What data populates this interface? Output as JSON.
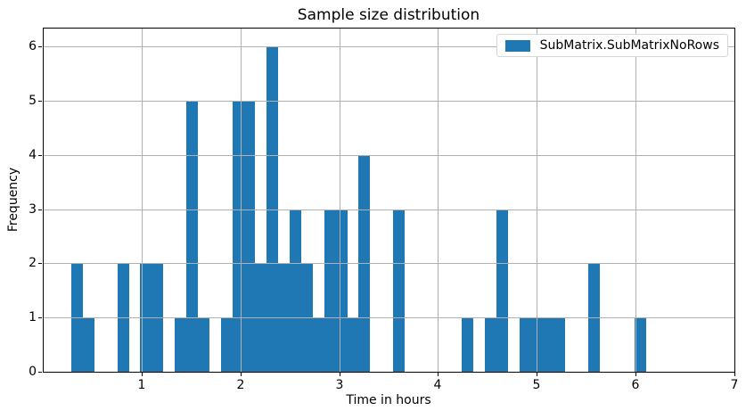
{
  "chart_data": {
    "type": "histogram",
    "title": "Sample size distribution",
    "xlabel": "Time in hours",
    "ylabel": "Frequency",
    "series_name": "SubMatrix.SubMatrixNoRows",
    "legend_position": "upper right",
    "grid": true,
    "xlim": [
      0,
      7
    ],
    "ylim": [
      0,
      6.35
    ],
    "xticks": [
      1,
      2,
      3,
      4,
      5,
      6,
      7
    ],
    "yticks": [
      0,
      1,
      2,
      3,
      4,
      5,
      6
    ],
    "bin_start": 0.29,
    "bin_width": 0.11628,
    "data_range": [
      0.29,
      6.1
    ],
    "counts": [
      2,
      1,
      0,
      0,
      2,
      0,
      2,
      2,
      0,
      1,
      5,
      1,
      0,
      1,
      5,
      5,
      2,
      6,
      2,
      3,
      2,
      1,
      3,
      3,
      1,
      4,
      0,
      0,
      3,
      0,
      0,
      0,
      0,
      0,
      1,
      0,
      1,
      3,
      0,
      1,
      1,
      1,
      1,
      0,
      0,
      2,
      0,
      0,
      0,
      1
    ],
    "bar_color": "#1f77b4",
    "grid_color": "#b0b0b0",
    "spine_color": "#000000",
    "text_color": "#000000"
  },
  "legend": {
    "label": "SubMatrix.SubMatrixNoRows"
  }
}
